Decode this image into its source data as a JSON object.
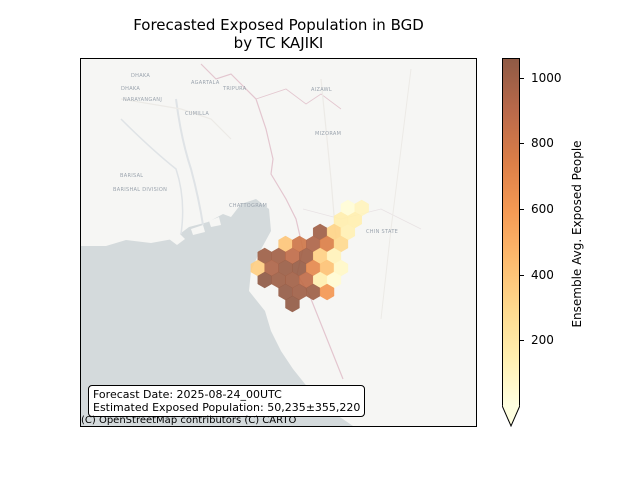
{
  "title_line1": "Forecasted Exposed Population in BGD",
  "title_line2": "by TC KAJIKI",
  "info": {
    "forecast_date": "Forecast Date: 2025-08-24_00UTC",
    "exposed_population": "Estimated Exposed Population: 50,235±355,220"
  },
  "attribution": "(C) OpenStreetMap contributors (C) CARTO",
  "map_labels": {
    "dhaka": "DHAKA",
    "narayanganj": "NARAYANGANJ",
    "comilla": "CUMILLA",
    "agartala": "AGARTALA",
    "tripura": "TRIPURA",
    "aizawl": "AIZAWL",
    "mizoram": "MIZORAM",
    "barisal": "BARISAL",
    "barishal_division": "BARISHAL DIVISION",
    "chattogram": "CHATTOGRAM",
    "chin_state": "CHIN STATE"
  },
  "colors": {
    "land": "#f6f6f4",
    "water": "#d4dadc",
    "river": "#dfe3e6",
    "border": "#e3c6cf",
    "cmap": [
      "#ffffe0",
      "#ffefb0",
      "#fed98e",
      "#fdbb6e",
      "#f59a54",
      "#dc7f48",
      "#b9694a",
      "#8f5a45"
    ]
  },
  "chart_data": {
    "type": "heatmap",
    "title": "Forecasted Exposed Population in BGD\nby TC KAJIKI",
    "colorbar": {
      "label": "Ensemble Avg. Exposed People",
      "ticks": [
        200,
        400,
        600,
        800,
        1000
      ],
      "vmin": 0,
      "vmax": 1060,
      "extend": "min",
      "colormap": "YlOrBr-like"
    },
    "hexbins": [
      {
        "col": 8,
        "row": 0,
        "value": 30
      },
      {
        "col": 9,
        "row": 0,
        "value": 110
      },
      {
        "col": 7,
        "row": 1,
        "value": 160
      },
      {
        "col": 8,
        "row": 1,
        "value": 150
      },
      {
        "col": 6,
        "row": 2,
        "value": 1000
      },
      {
        "col": 7,
        "row": 2,
        "value": 330
      },
      {
        "col": 8,
        "row": 2,
        "value": 140
      },
      {
        "col": 3,
        "row": 3,
        "value": 400
      },
      {
        "col": 4,
        "row": 3,
        "value": 820
      },
      {
        "col": 5,
        "row": 3,
        "value": 950
      },
      {
        "col": 6,
        "row": 3,
        "value": 760
      },
      {
        "col": 7,
        "row": 3,
        "value": 300
      },
      {
        "col": 2,
        "row": 4,
        "value": 1010
      },
      {
        "col": 3,
        "row": 4,
        "value": 990
      },
      {
        "col": 4,
        "row": 4,
        "value": 880
      },
      {
        "col": 5,
        "row": 4,
        "value": 1000
      },
      {
        "col": 6,
        "row": 4,
        "value": 350
      },
      {
        "col": 7,
        "row": 4,
        "value": 120
      },
      {
        "col": 1,
        "row": 5,
        "value": 360
      },
      {
        "col": 2,
        "row": 5,
        "value": 950
      },
      {
        "col": 3,
        "row": 5,
        "value": 1020
      },
      {
        "col": 4,
        "row": 5,
        "value": 1030
      },
      {
        "col": 5,
        "row": 5,
        "value": 700
      },
      {
        "col": 6,
        "row": 5,
        "value": 420
      },
      {
        "col": 7,
        "row": 5,
        "value": 80
      },
      {
        "col": 2,
        "row": 6,
        "value": 1060
      },
      {
        "col": 3,
        "row": 6,
        "value": 1010
      },
      {
        "col": 4,
        "row": 6,
        "value": 990
      },
      {
        "col": 5,
        "row": 6,
        "value": 880
      },
      {
        "col": 6,
        "row": 6,
        "value": 150
      },
      {
        "col": 7,
        "row": 6,
        "value": 40
      },
      {
        "col": 3,
        "row": 7,
        "value": 1040
      },
      {
        "col": 4,
        "row": 7,
        "value": 1000
      },
      {
        "col": 5,
        "row": 7,
        "value": 1010
      },
      {
        "col": 6,
        "row": 7,
        "value": 620
      },
      {
        "col": 4,
        "row": 8,
        "value": 1050
      }
    ]
  }
}
